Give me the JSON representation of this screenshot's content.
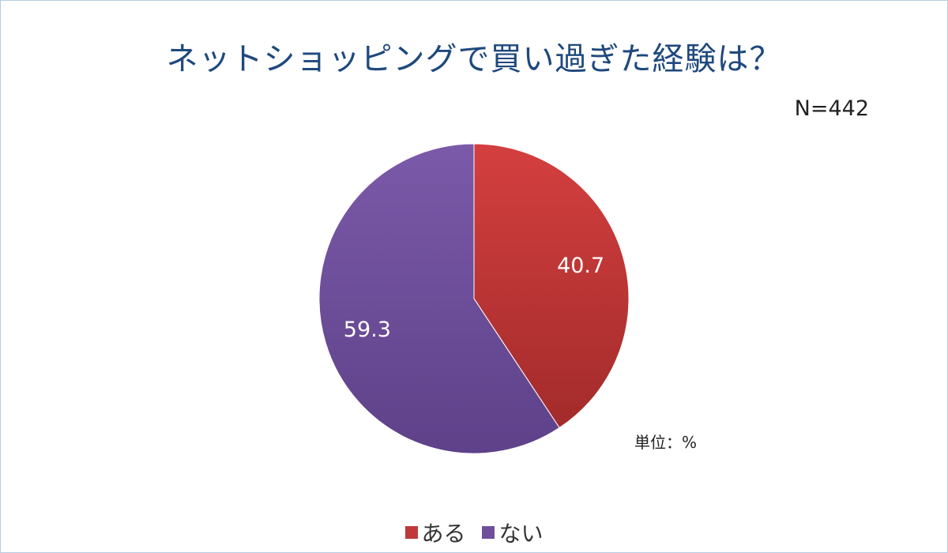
{
  "title": "ネットショッピングで買い過ぎた経験は？",
  "sample_size": "N=442",
  "unit": "単位：%",
  "chart_data": {
    "type": "pie",
    "title": "ネットショッピングで買い過ぎた経験は？",
    "categories": [
      "ある",
      "ない"
    ],
    "values": [
      40.7,
      59.3
    ],
    "value_labels": [
      "40.7",
      "59.3"
    ],
    "colors": [
      "#c0393a",
      "#6f4f9c"
    ],
    "start": "12 o'clock",
    "direction": "clockwise",
    "legend_position": "bottom"
  }
}
